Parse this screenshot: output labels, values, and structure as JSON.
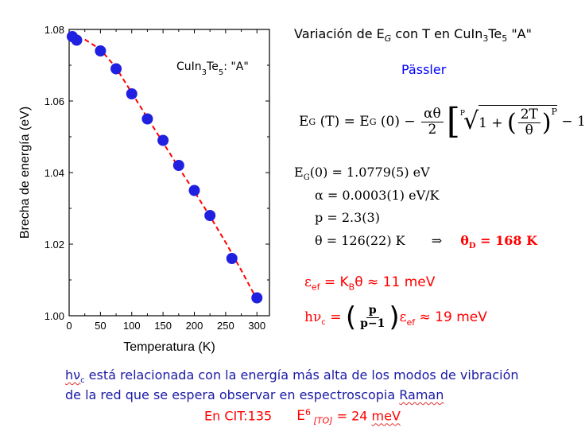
{
  "chart_data": {
    "type": "scatter",
    "title": "",
    "xlabel": "Temperatura  (K)",
    "ylabel": "Brecha de energía  (eV)",
    "xlim": [
      0,
      320
    ],
    "ylim": [
      1.0,
      1.08
    ],
    "xticks": [
      "0",
      "50",
      "100",
      "150",
      "200",
      "250",
      "300"
    ],
    "yticks": [
      "1.00",
      "1.02",
      "1.04",
      "1.06",
      "1.08"
    ],
    "inset_label": "CuIn3Te5: \"A\"",
    "series": [
      {
        "marker": "circle",
        "color": "#2020e0",
        "x": [
          5,
          12,
          50,
          75,
          100,
          125,
          150,
          175,
          200,
          225,
          260,
          300
        ],
        "y": [
          1.078,
          1.077,
          1.074,
          1.069,
          1.062,
          1.055,
          1.049,
          1.042,
          1.035,
          1.028,
          1.016,
          1.005
        ]
      },
      {
        "style": "dashed-line",
        "color": "#ff0000",
        "x": [
          0,
          25,
          50,
          75,
          100,
          125,
          150,
          175,
          200,
          225,
          250,
          275,
          300
        ],
        "y": [
          1.0779,
          1.0772,
          1.0744,
          1.0693,
          1.0623,
          1.0553,
          1.0484,
          1.0414,
          1.0347,
          1.0278,
          1.0205,
          1.0127,
          1.0045
        ]
      }
    ]
  },
  "text": {
    "title_pre": "Variación de E",
    "title_sub": "G",
    "title_mid": " con T en CuIn",
    "title_sub3": "3",
    "title_te": "Te",
    "title_sub5": "5",
    "title_post": " \"A\"",
    "passler": "Pässler",
    "formula_lhs": "E",
    "formula_lhs_sub": "G",
    "formula_lhs_rest": " (T) = E",
    "formula_rhs_sub": "G",
    "formula_rhs_rest": " (0) − ",
    "formula_frac_num": "αθ",
    "formula_frac_den": "2",
    "formula_root_index": "P",
    "formula_inner": "1 + ",
    "formula_inner_num": "2T",
    "formula_inner_den": "θ",
    "formula_exp": "P",
    "formula_tail": " − 1",
    "eg0": "E",
    "eg0_sub": "G",
    "eg0_rest": "(0) = 1.0779(5)  eV",
    "alpha": "α = 0.0003(1)  eV/K",
    "p": "p = 2.3(3)",
    "theta": "θ = 126(22) K",
    "arrow": "⇒",
    "theta_d": "θ",
    "theta_d_sub": "D",
    "theta_d_rest": " = 168 K",
    "eef_eps": "ε",
    "eef_sub": "ef",
    "eef_rest": " = K",
    "eef_kb_sub": "B",
    "eef_tail": "θ ≈ 11 meV",
    "hvc_h": "hν",
    "hvc_sub": "c",
    "hvc_eq": " = ",
    "hvc_frac_num": "p",
    "hvc_frac_den": "p−1",
    "hvc_eps": "ε",
    "hvc_eps_sub": "ef",
    "hvc_tail": " ≈ 19 meV",
    "note_hv": "hν",
    "note_hv_sub": "c",
    "note_line1": " está relacionada con la energía más alta de los modos de vibración",
    "note_line2a": "de la red que se espera observar en espectroscopia ",
    "note_line2b": "Raman",
    "bottom_a": "En CIT:135",
    "bottom_e": "E",
    "bottom_sup": "6",
    "bottom_sub": " [TO]",
    "bottom_rest": " = 24 ",
    "bottom_unit": "meV"
  }
}
